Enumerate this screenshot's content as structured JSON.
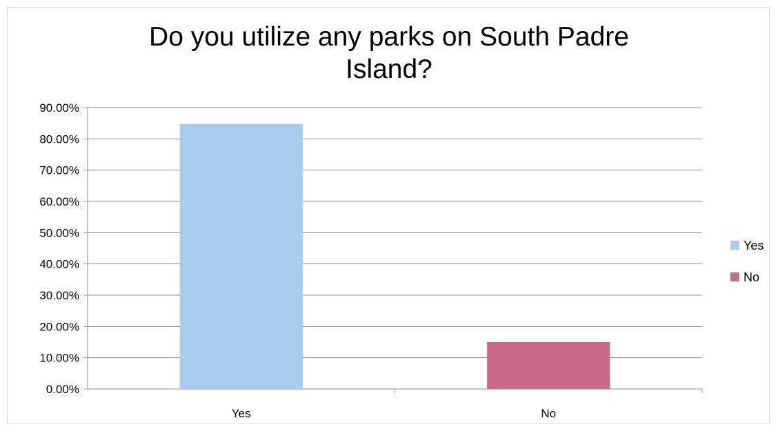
{
  "chart_data": {
    "type": "bar",
    "title": "Do you utilize any parks on South Padre\nIsland?",
    "categories": [
      "Yes",
      "No"
    ],
    "series": [
      {
        "name": "Yes",
        "values": [
          84.8,
          null
        ],
        "color": "#a8cbef"
      },
      {
        "name": "No",
        "values": [
          null,
          15.0
        ],
        "color": "#c76a8c"
      }
    ],
    "ylim": [
      0,
      90
    ],
    "y_ticks": [
      "0.00%",
      "10.00%",
      "20.00%",
      "30.00%",
      "40.00%",
      "50.00%",
      "60.00%",
      "70.00%",
      "80.00%",
      "90.00%"
    ],
    "grid": true,
    "legend_position": "right"
  }
}
